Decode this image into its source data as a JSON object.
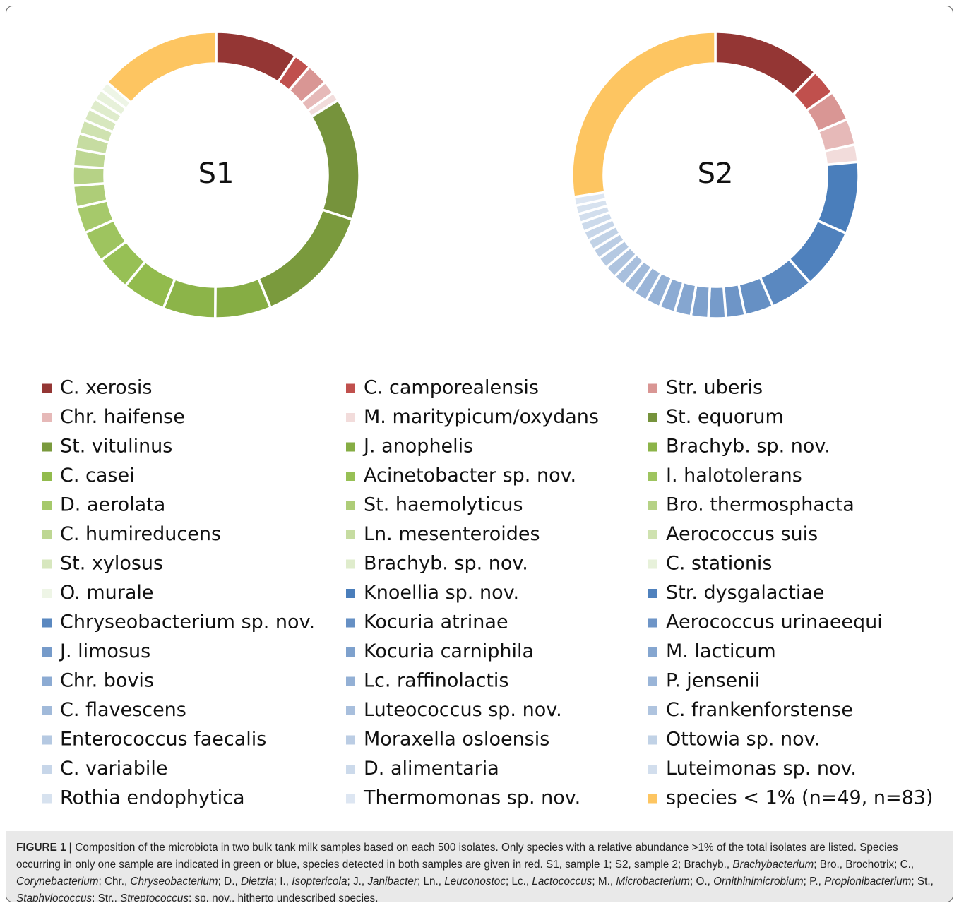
{
  "chart_data": {
    "type": "donut",
    "categories": [
      "C. xerosis",
      "C. camporealensis",
      "Str. uberis",
      "Chr. haifense",
      "M. maritypicum/oxydans",
      "St. equorum",
      "St. vitulinus",
      "J. anophelis",
      "Brachyb.  sp. nov.",
      "C. casei",
      "Acinetobacter sp. nov.",
      "I. halotolerans",
      "D. aerolata",
      "St. haemolyticus",
      "Bro. thermosphacta",
      "C. humireducens",
      "Ln. mesenteroides",
      "Aerococcus suis",
      "St. xylosus",
      "Brachyb.  sp. nov.",
      "C. stationis",
      "O. murale",
      "Knoellia sp. nov.",
      "Str. dysgalactiae",
      "Chryseobacterium sp. nov.",
      "Kocuria atrinae",
      "Aerococcus urinaeequi",
      "J. limosus",
      "Kocuria carniphila",
      "M. lacticum",
      "Chr. bovis",
      "Lc. raffinolactis",
      "P. jensenii",
      "C. flavescens",
      "Luteococcus sp. nov.",
      "C.  frankenforstense",
      "Enterococcus faecalis",
      "Moraxella osloensis",
      "Ottowia sp. nov.",
      "C. variabile",
      "D. alimentaria",
      "Luteimonas sp. nov.",
      "Rothia endophytica",
      "Thermomonas sp. nov.",
      "species < 1% (n=49, n=83)"
    ],
    "colors": [
      "#943634",
      "#c0504d",
      "#d99694",
      "#e6b9b8",
      "#f2dcdb",
      "#76933c",
      "#7a9a3d",
      "#86ad44",
      "#8cb449",
      "#92bb4d",
      "#97c055",
      "#9ec45f",
      "#a6c96b",
      "#aecd78",
      "#b6d286",
      "#bed793",
      "#c6dca1",
      "#cfe2b0",
      "#d7e7be",
      "#dfeccc",
      "#e7f1da",
      "#eef5e6",
      "#4a7ebb",
      "#4f81bd",
      "#5a88c0",
      "#6690c4",
      "#6e95c7",
      "#769bca",
      "#7ea1cd",
      "#85a6d0",
      "#8cabd3",
      "#93b0d5",
      "#9ab5d8",
      "#a1bada",
      "#a8bfdd",
      "#afc4df",
      "#b5c9e2",
      "#bbcde4",
      "#c1d2e6",
      "#c7d6e9",
      "#ccdaeb",
      "#d2deed",
      "#d7e2ef",
      "#dde6f2",
      "#fdc561"
    ],
    "series": [
      {
        "name": "S1",
        "values": [
          9.5,
          2,
          2.5,
          1.5,
          1,
          14,
          14,
          6.4,
          6,
          5,
          4,
          3.6,
          3,
          2.5,
          2.2,
          2,
          1.8,
          1.6,
          1.4,
          1.3,
          1.2,
          1.1,
          null,
          null,
          null,
          null,
          null,
          null,
          null,
          null,
          null,
          null,
          null,
          null,
          null,
          null,
          null,
          null,
          null,
          null,
          null,
          null,
          null,
          null,
          14
        ]
      },
      {
        "name": "S2",
        "values": [
          12.5,
          3,
          3.5,
          3,
          2,
          null,
          null,
          null,
          null,
          null,
          null,
          null,
          null,
          null,
          null,
          null,
          null,
          null,
          null,
          null,
          null,
          null,
          8.3,
          7,
          5,
          3.3,
          2.2,
          2,
          2,
          1.9,
          1.8,
          1.7,
          1.6,
          1.5,
          1.4,
          1.4,
          1.3,
          1.2,
          1.2,
          1.1,
          1.1,
          1,
          1,
          1,
          28
        ]
      }
    ]
  },
  "caption": [
    {
      "text": "FIGURE 1 |",
      "bold": true
    },
    {
      "text": " Composition of the microbiota in two bulk tank milk samples based on each 500 isolates. Only species with a relative abundance >1% of the total isolates are listed. Species occurring in only one sample are indicated in green or blue, species detected in both samples are given in red. S1, sample 1; S2, sample 2; Brachyb., "
    },
    {
      "text": "Brachybacterium",
      "italic": true
    },
    {
      "text": "; Bro., Brochotrix; C., "
    },
    {
      "text": "Corynebacterium",
      "italic": true
    },
    {
      "text": "; Chr., "
    },
    {
      "text": "Chryseobacterium",
      "italic": true
    },
    {
      "text": "; D., "
    },
    {
      "text": "Dietzia",
      "italic": true
    },
    {
      "text": "; I., "
    },
    {
      "text": "Isoptericola",
      "italic": true
    },
    {
      "text": "; J., "
    },
    {
      "text": "Janibacter",
      "italic": true
    },
    {
      "text": "; Ln., "
    },
    {
      "text": "Leuconostoc",
      "italic": true
    },
    {
      "text": "; Lc., "
    },
    {
      "text": "Lactococcus",
      "italic": true
    },
    {
      "text": "; M., "
    },
    {
      "text": "Microbacterium",
      "italic": true
    },
    {
      "text": "; O., "
    },
    {
      "text": "Ornithinimicrobium",
      "italic": true
    },
    {
      "text": "; P., "
    },
    {
      "text": "Propionibacterium",
      "italic": true
    },
    {
      "text": "; St., "
    },
    {
      "text": "Staphylococcus",
      "italic": true
    },
    {
      "text": "; Str., "
    },
    {
      "text": "Streptococcus",
      "italic": true
    },
    {
      "text": "; sp. nov., hitherto undescribed species."
    }
  ]
}
